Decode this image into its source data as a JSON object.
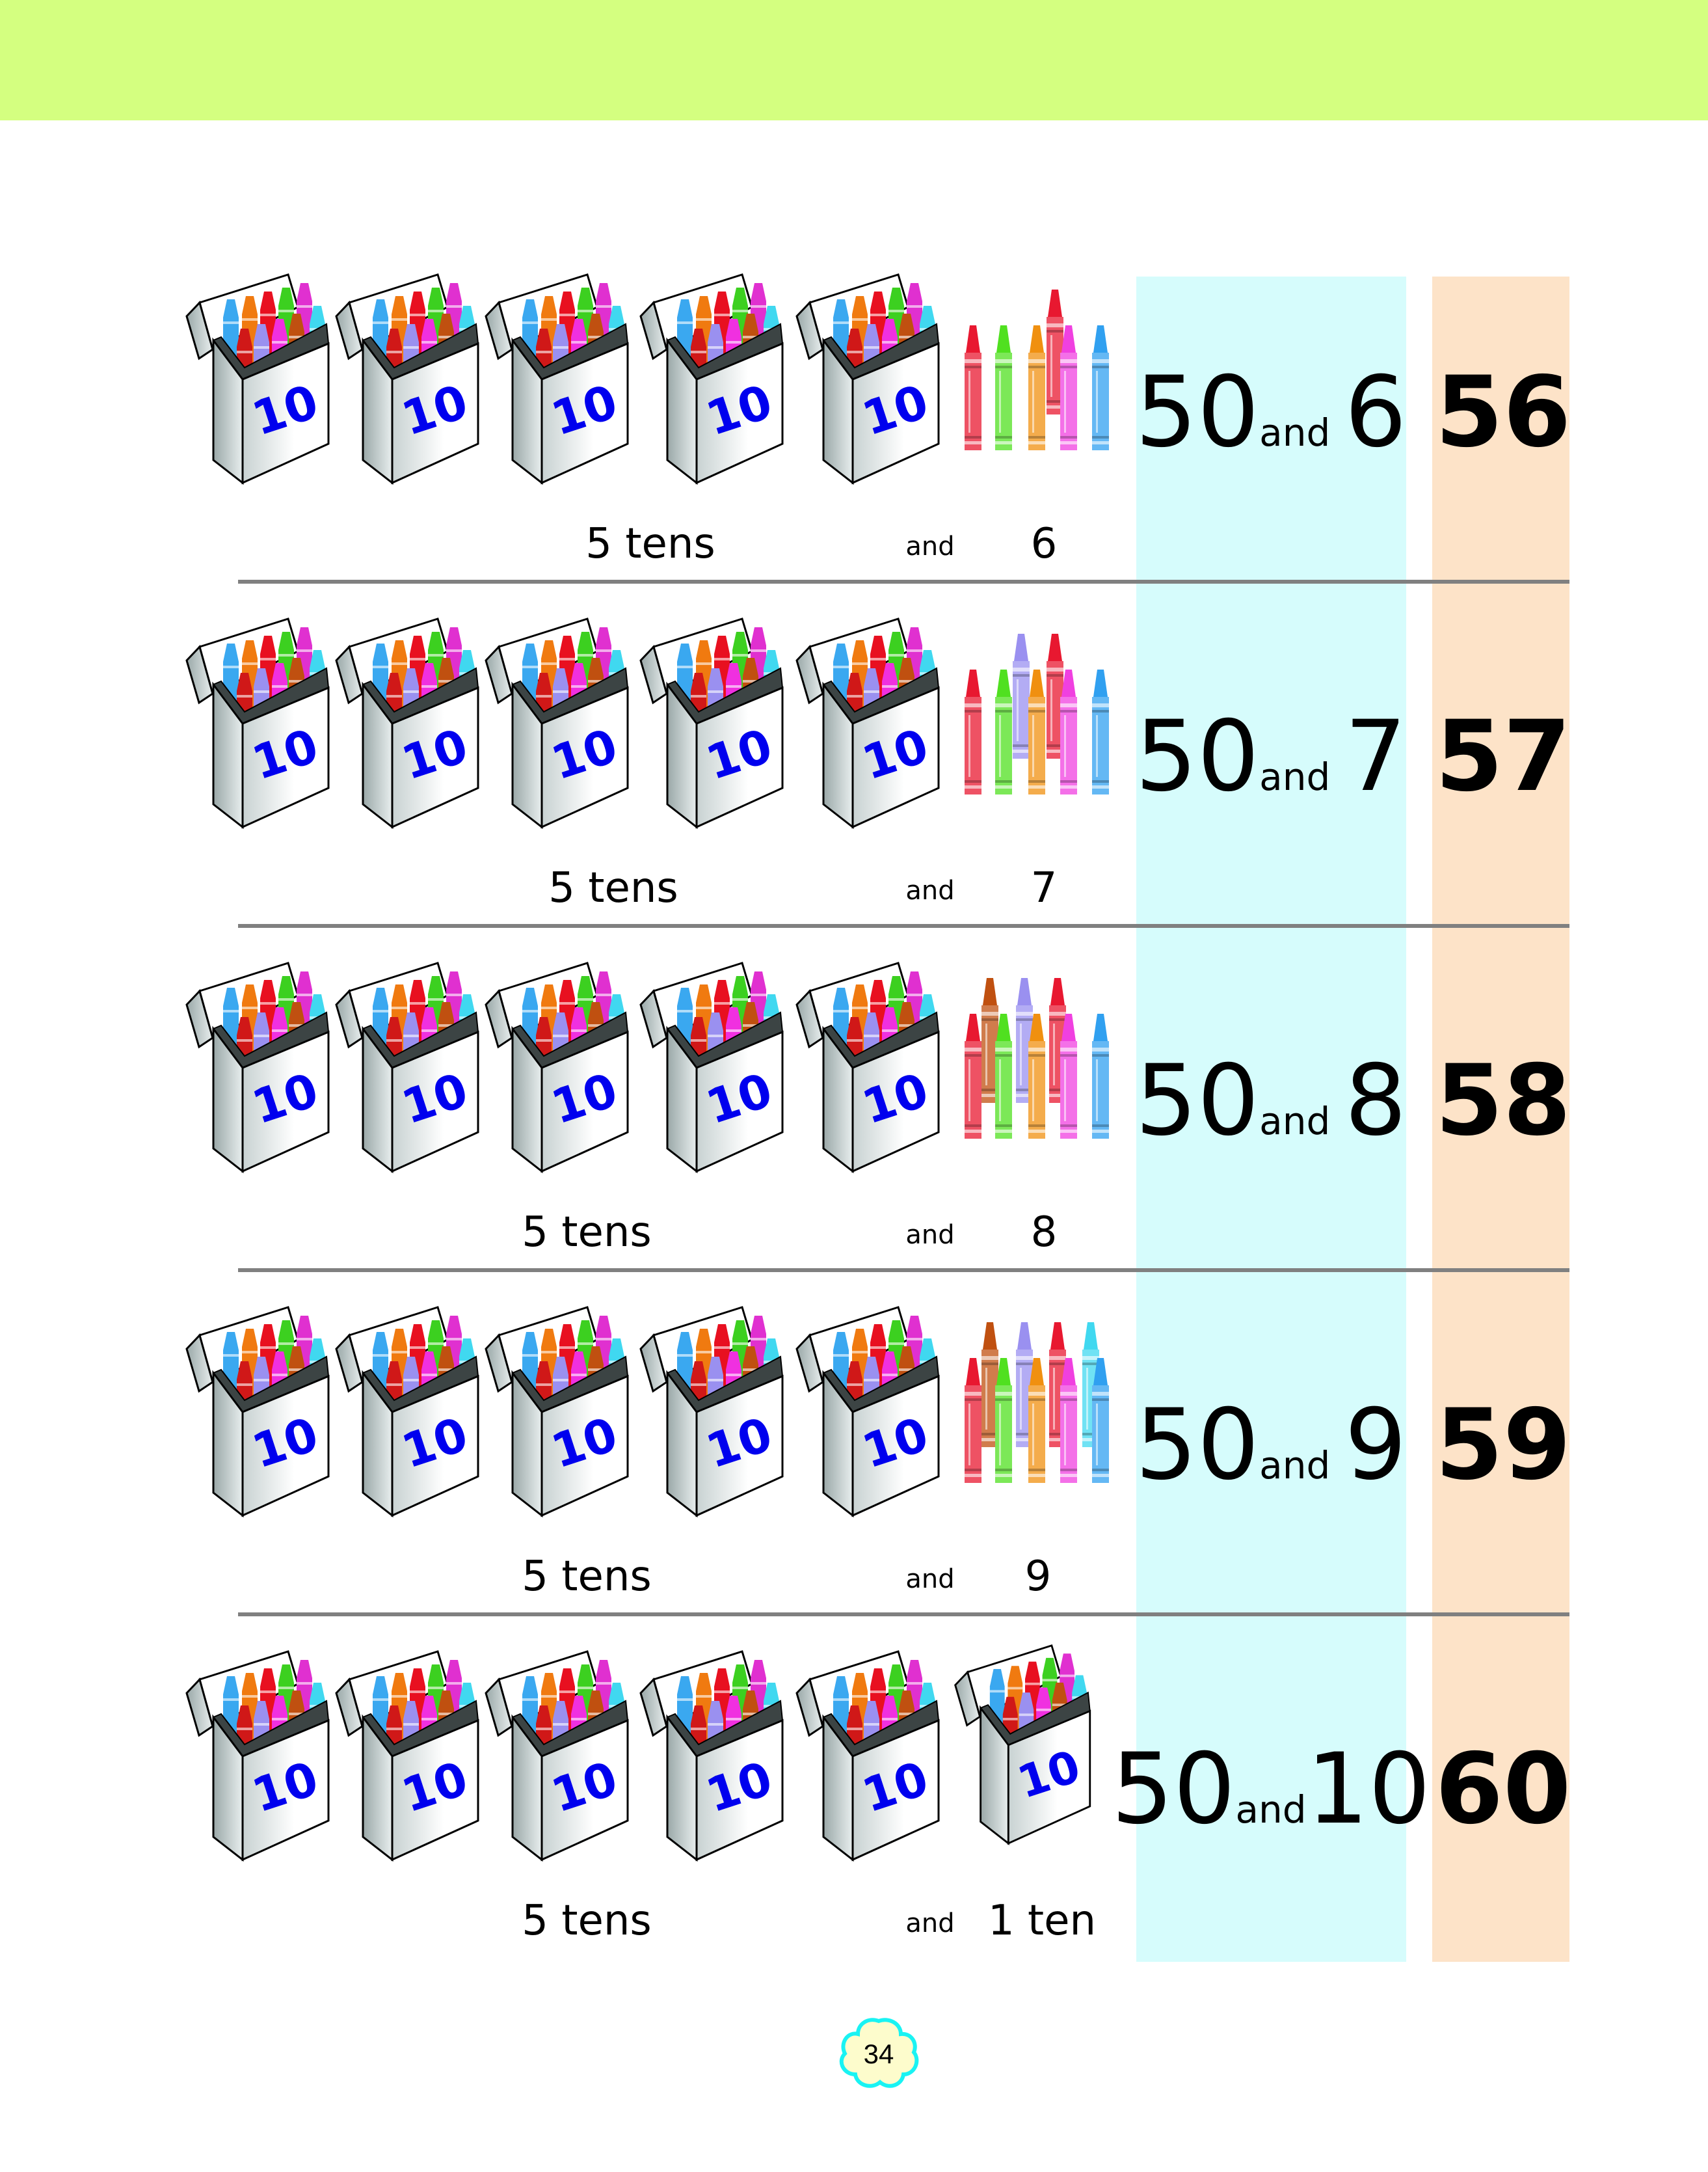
{
  "colors": {
    "header_band": "#d4ff80",
    "expression_column": "#d6fcfc",
    "total_column": "#fde3c8",
    "box_number": "#0000ee",
    "flower_fill": "#fdfccc",
    "flower_outline": "#19f3f3"
  },
  "box_label": "10",
  "box_crayon_colors": [
    "#3aa8f0",
    "#f07a10",
    "#e81020",
    "#3cd020",
    "#e030d0",
    "#d01818",
    "#9a90f0",
    "#f030e0",
    "#c05010",
    "#40d8f0"
  ],
  "rows": [
    {
      "tens_label": "5 tens",
      "and_label": "and",
      "ones_label": "6",
      "expr_tens": "50",
      "expr_and": "and",
      "expr_ones": "6",
      "total": "56",
      "extra_box": false,
      "front_crayons": [
        "#e81830",
        "#50e020",
        "#f09010",
        "#f040e0",
        "#30a0f0"
      ],
      "back_crayons": [
        "#e81830"
      ]
    },
    {
      "tens_label": "5 tens",
      "and_label": "and",
      "ones_label": "7",
      "expr_tens": "50",
      "expr_and": "and",
      "expr_ones": "7",
      "total": "57",
      "extra_box": false,
      "front_crayons": [
        "#e81830",
        "#50e020",
        "#f09010",
        "#f040e0",
        "#30a0f0"
      ],
      "back_crayons": [
        "#9a90f0",
        "#e81830"
      ]
    },
    {
      "tens_label": "5 tens",
      "and_label": "and",
      "ones_label": "8",
      "expr_tens": "50",
      "expr_and": "and",
      "expr_ones": "8",
      "total": "58",
      "extra_box": false,
      "front_crayons": [
        "#e81830",
        "#50e020",
        "#f09010",
        "#f040e0",
        "#30a0f0"
      ],
      "back_crayons": [
        "#c05010",
        "#9a90f0",
        "#e81830"
      ]
    },
    {
      "tens_label": "5 tens",
      "and_label": "and",
      "ones_label": "9",
      "expr_tens": "50",
      "expr_and": "and",
      "expr_ones": "9",
      "total": "59",
      "extra_box": false,
      "front_crayons": [
        "#e81830",
        "#50e020",
        "#f09010",
        "#f040e0",
        "#30a0f0"
      ],
      "back_crayons": [
        "#c05010",
        "#9a90f0",
        "#e81830",
        "#40d8f0"
      ]
    },
    {
      "tens_label": "5 tens",
      "and_label": "and",
      "ones_label": "1 ten",
      "expr_tens": "50",
      "expr_and": "and",
      "expr_ones": "10",
      "total": "60",
      "extra_box": true,
      "front_crayons": [],
      "back_crayons": []
    }
  ],
  "page_number": "34"
}
